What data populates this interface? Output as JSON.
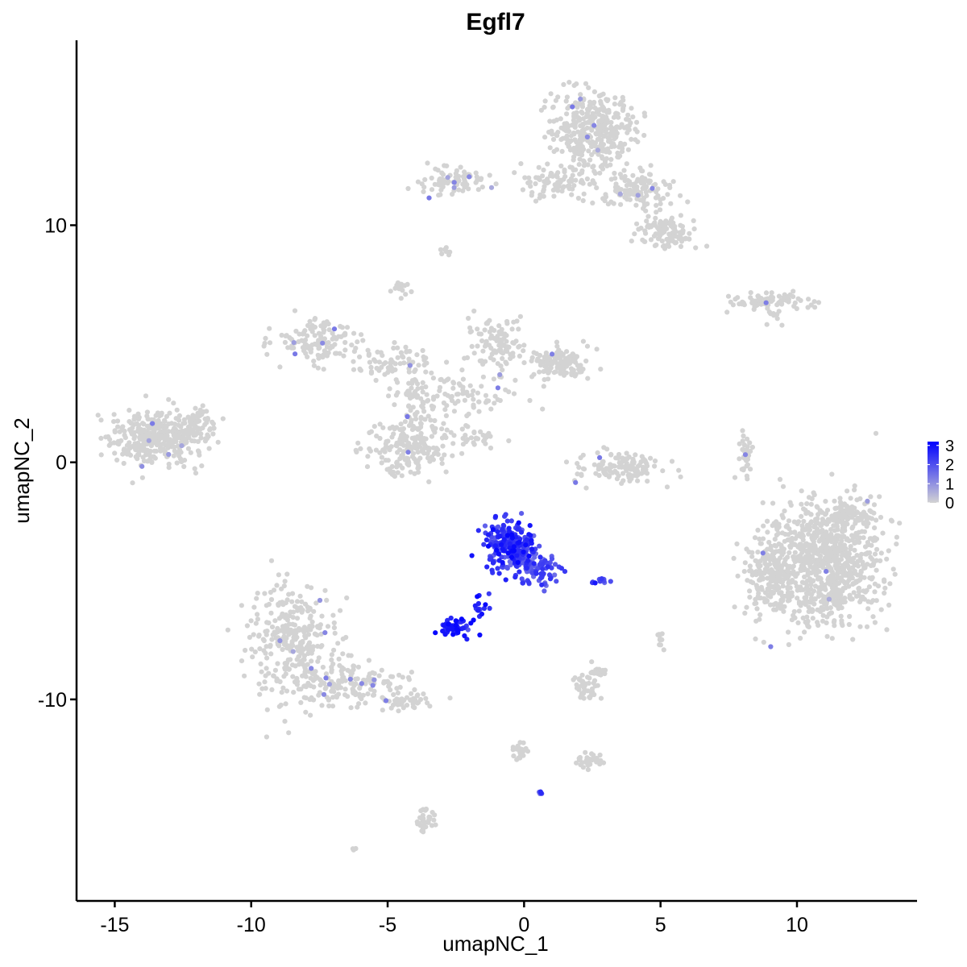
{
  "chart_data": {
    "type": "scatter",
    "title": "Egfl7",
    "xlabel": "umapNC_1",
    "ylabel": "umapNC_2",
    "xlim": [
      -16.4,
      14.4
    ],
    "ylim": [
      -18.5,
      17.8
    ],
    "x_ticks": [
      -15,
      -10,
      -5,
      0,
      5,
      10
    ],
    "x_tick_labels": [
      "-15",
      "-10",
      "-5",
      "0",
      "5",
      "10"
    ],
    "y_ticks": [
      -10,
      0,
      10
    ],
    "y_tick_labels": [
      "-10",
      "0",
      "10"
    ],
    "grid": false,
    "legend": {
      "placement": "right",
      "min": 0,
      "max": 3.2,
      "ticks": [
        0,
        1,
        2,
        3
      ],
      "tick_labels": [
        "0",
        "1",
        "2",
        "3"
      ],
      "low_color": "#d3d3d3",
      "high_color": "#0000ff"
    },
    "clusters": [
      {
        "cx": -13.5,
        "cy": 1.0,
        "rx": 1.5,
        "ry": 1.0,
        "n": 360,
        "expr": 0.0
      },
      {
        "cx": -12.0,
        "cy": 1.6,
        "rx": 0.7,
        "ry": 0.6,
        "n": 60,
        "expr": 0.0
      },
      {
        "cx": -8.5,
        "cy": -7.5,
        "rx": 1.5,
        "ry": 2.2,
        "n": 300,
        "expr": 0.0
      },
      {
        "cx": -6.5,
        "cy": -9.3,
        "rx": 2.0,
        "ry": 0.8,
        "n": 160,
        "expr": 0.0
      },
      {
        "cx": -4.5,
        "cy": -10.1,
        "rx": 1.0,
        "ry": 0.4,
        "n": 50,
        "expr": 0.0
      },
      {
        "cx": -7.5,
        "cy": 5.2,
        "rx": 1.4,
        "ry": 0.9,
        "n": 120,
        "expr": 0.0
      },
      {
        "cx": -5.0,
        "cy": 4.2,
        "rx": 1.5,
        "ry": 0.6,
        "n": 70,
        "expr": 0.0
      },
      {
        "cx": -4.3,
        "cy": 0.6,
        "rx": 1.4,
        "ry": 1.0,
        "n": 180,
        "expr": 0.0
      },
      {
        "cx": -4.0,
        "cy": 2.6,
        "rx": 0.7,
        "ry": 1.2,
        "n": 70,
        "expr": 0.0
      },
      {
        "cx": -1.0,
        "cy": 5.0,
        "rx": 1.0,
        "ry": 1.0,
        "n": 100,
        "expr": 0.0
      },
      {
        "cx": 1.3,
        "cy": 4.2,
        "rx": 1.0,
        "ry": 0.6,
        "n": 140,
        "expr": 0.0
      },
      {
        "cx": -2.2,
        "cy": 2.8,
        "rx": 1.8,
        "ry": 0.8,
        "n": 80,
        "expr": 0.0
      },
      {
        "cx": -1.8,
        "cy": 1.0,
        "rx": 0.8,
        "ry": 0.4,
        "n": 30,
        "expr": 0.0
      },
      {
        "cx": 2.5,
        "cy": 14.0,
        "rx": 1.4,
        "ry": 1.5,
        "n": 380,
        "expr": 0.0
      },
      {
        "cx": 1.2,
        "cy": 11.8,
        "rx": 1.2,
        "ry": 0.6,
        "n": 80,
        "expr": 0.0
      },
      {
        "cx": 4.2,
        "cy": 11.5,
        "rx": 1.2,
        "ry": 0.8,
        "n": 120,
        "expr": 0.0
      },
      {
        "cx": 5.2,
        "cy": 9.8,
        "rx": 1.0,
        "ry": 0.6,
        "n": 110,
        "expr": 0.0
      },
      {
        "cx": -2.5,
        "cy": 11.8,
        "rx": 1.2,
        "ry": 0.5,
        "n": 80,
        "expr": 0.0
      },
      {
        "cx": -4.5,
        "cy": 7.3,
        "rx": 0.3,
        "ry": 0.3,
        "n": 15,
        "expr": 0.0
      },
      {
        "cx": -2.8,
        "cy": 8.8,
        "rx": 0.2,
        "ry": 0.2,
        "n": 8,
        "expr": 0.0
      },
      {
        "cx": 8.8,
        "cy": 6.8,
        "rx": 1.3,
        "ry": 0.3,
        "n": 80,
        "expr": 0.0
      },
      {
        "cx": 9.1,
        "cy": 6.2,
        "rx": 0.3,
        "ry": 0.3,
        "n": 10,
        "expr": 0.0
      },
      {
        "cx": 11.0,
        "cy": -4.2,
        "rx": 1.8,
        "ry": 2.3,
        "n": 900,
        "expr": 0.0
      },
      {
        "cx": 9.0,
        "cy": -4.8,
        "rx": 0.9,
        "ry": 1.6,
        "n": 180,
        "expr": 0.0
      },
      {
        "cx": 12.0,
        "cy": -2.2,
        "rx": 0.8,
        "ry": 0.5,
        "n": 80,
        "expr": 0.0
      },
      {
        "cx": 3.5,
        "cy": -0.2,
        "rx": 1.4,
        "ry": 0.6,
        "n": 130,
        "expr": 0.0
      },
      {
        "cx": 8.1,
        "cy": 0.2,
        "rx": 0.2,
        "ry": 0.9,
        "n": 40,
        "expr": 0.0
      },
      {
        "cx": 2.3,
        "cy": -9.5,
        "rx": 0.4,
        "ry": 0.4,
        "n": 40,
        "expr": 0.0
      },
      {
        "cx": 2.7,
        "cy": -8.8,
        "rx": 0.3,
        "ry": 0.3,
        "n": 20,
        "expr": 0.0
      },
      {
        "cx": 2.3,
        "cy": -12.6,
        "rx": 0.6,
        "ry": 0.3,
        "n": 30,
        "expr": 0.0
      },
      {
        "cx": -0.2,
        "cy": -12.2,
        "rx": 0.3,
        "ry": 0.4,
        "n": 20,
        "expr": 0.0
      },
      {
        "cx": -3.6,
        "cy": -15.1,
        "rx": 0.3,
        "ry": 0.6,
        "n": 30,
        "expr": 0.0
      },
      {
        "cx": 5.0,
        "cy": -7.4,
        "rx": 0.2,
        "ry": 0.3,
        "n": 10,
        "expr": 0.0
      },
      {
        "cx": -6.2,
        "cy": -16.3,
        "rx": 0.1,
        "ry": 0.1,
        "n": 4,
        "expr": 0.0
      },
      {
        "cx": -0.5,
        "cy": -3.5,
        "rx": 0.9,
        "ry": 0.9,
        "n": 240,
        "expr": 2.3
      },
      {
        "cx": 0.5,
        "cy": -4.6,
        "rx": 0.7,
        "ry": 0.6,
        "n": 80,
        "expr": 1.9
      },
      {
        "cx": -2.5,
        "cy": -7.0,
        "rx": 0.5,
        "ry": 0.3,
        "n": 60,
        "expr": 2.8
      },
      {
        "cx": -1.6,
        "cy": -6.0,
        "rx": 0.3,
        "ry": 0.5,
        "n": 15,
        "expr": 2.5
      },
      {
        "cx": 2.8,
        "cy": -5.0,
        "rx": 0.3,
        "ry": 0.1,
        "n": 10,
        "expr": 2.0
      },
      {
        "cx": 0.6,
        "cy": -13.9,
        "rx": 0.1,
        "ry": 0.1,
        "n": 5,
        "expr": 1.9
      }
    ]
  }
}
